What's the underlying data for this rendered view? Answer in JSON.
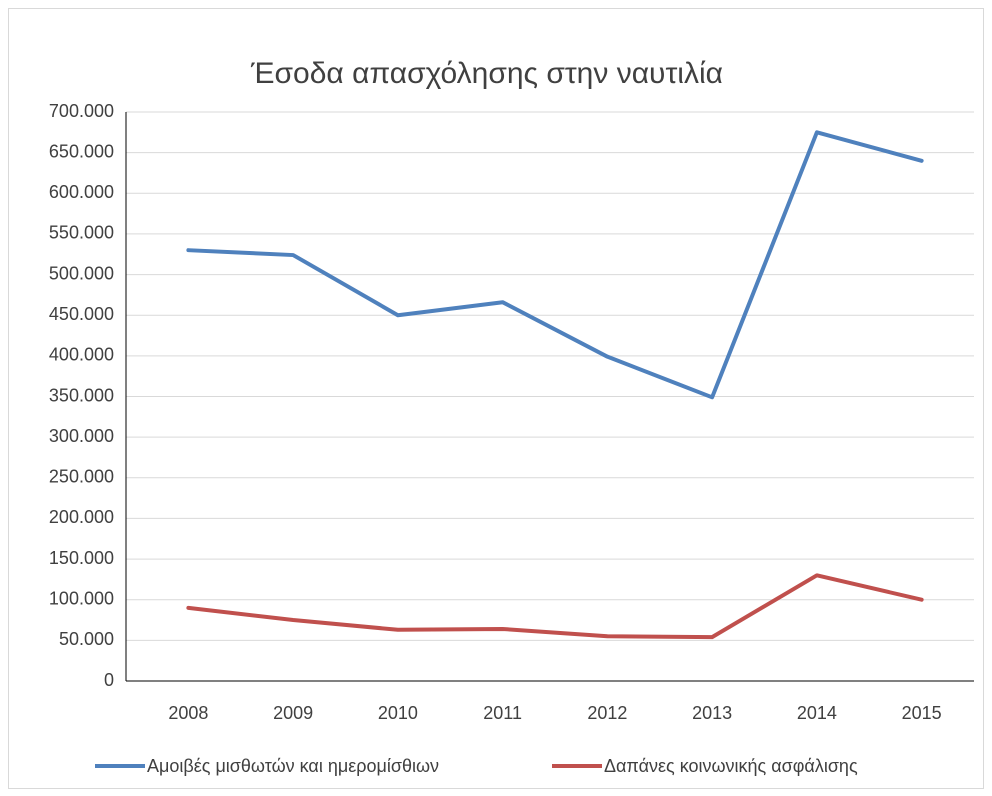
{
  "chart_data": {
    "type": "line",
    "title": "Έσοδα απασχόλησης στην ναυτιλία",
    "categories": [
      "2008",
      "2009",
      "2010",
      "2011",
      "2012",
      "2013",
      "2014",
      "2015"
    ],
    "series": [
      {
        "name": "Αμοιβές μισθωτών και ημερομίσθιων",
        "color": "#4f81bd",
        "values": [
          530000,
          524000,
          450000,
          466000,
          399000,
          349000,
          675000,
          640000
        ]
      },
      {
        "name": "Δαπάνες κοινωνικής ασφάλισης",
        "color": "#c0504d",
        "values": [
          90000,
          75000,
          63000,
          64000,
          55000,
          54000,
          130000,
          100000
        ]
      }
    ],
    "ylim": [
      0,
      700000
    ],
    "yticks": [
      0,
      {
        "value": 50000,
        "label": "50.000"
      },
      {
        "value": 100000,
        "label": "100.000"
      },
      {
        "value": 150000,
        "label": "150.000"
      },
      {
        "value": 200000,
        "label": "200.000"
      },
      {
        "value": 250000,
        "label": "250.000"
      },
      {
        "value": 300000,
        "label": "300.000"
      },
      {
        "value": 350000,
        "label": "350.000"
      },
      {
        "value": 400000,
        "label": "400.000"
      },
      {
        "value": 450000,
        "label": "450.000"
      },
      {
        "value": 500000,
        "label": "500.000"
      },
      {
        "value": 550000,
        "label": "550.000"
      },
      {
        "value": 600000,
        "label": "600.000"
      },
      {
        "value": 650000,
        "label": "650.000"
      },
      {
        "value": 700000,
        "label": "700.000"
      }
    ],
    "grid": true,
    "legend": "bottom"
  }
}
